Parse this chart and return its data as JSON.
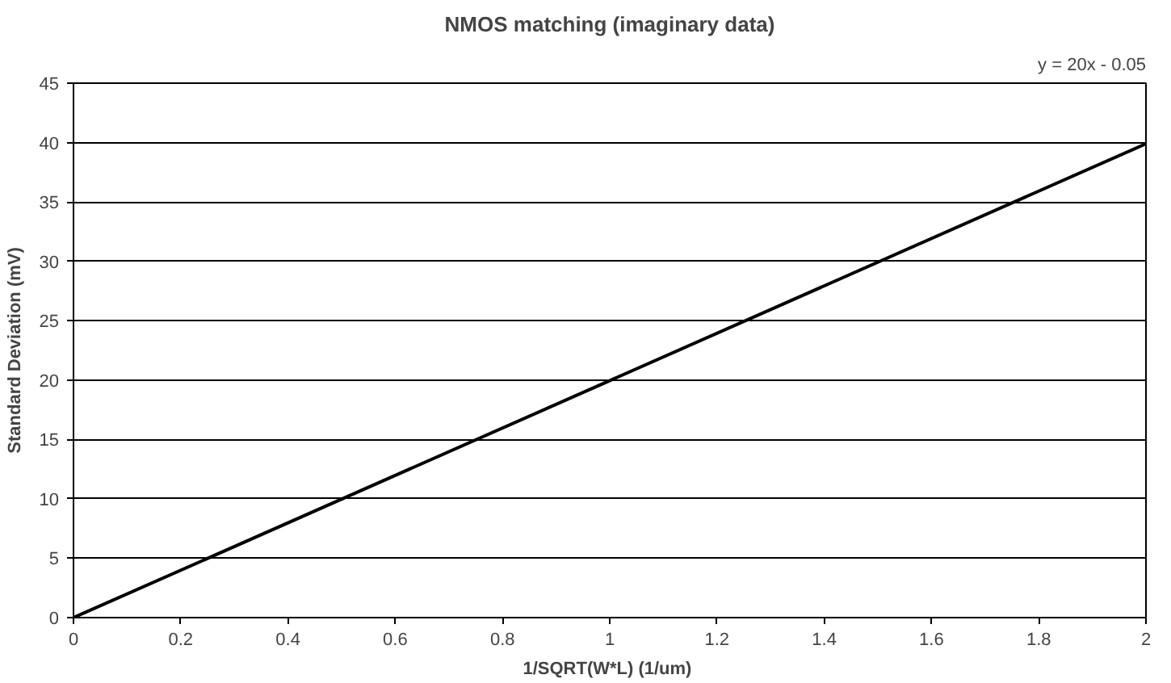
{
  "chart_data": {
    "type": "line",
    "title": "NMOS matching (imaginary data)",
    "xlabel": "1/SQRT(W*L)  (1/um)",
    "ylabel": "Standard Deviation (mV)",
    "annotations": [
      "y = 20x - 0.05"
    ],
    "x": [
      0,
      2
    ],
    "series": [
      {
        "color": "#000000",
        "values": [
          0,
          39.9
        ]
      }
    ],
    "xlim": [
      0,
      2
    ],
    "xticks": [
      0,
      0.2,
      0.4,
      0.6,
      0.8,
      1,
      1.2,
      1.4,
      1.6,
      1.8,
      2
    ],
    "ylim": [
      0,
      45
    ],
    "yticks": [
      0,
      5,
      10,
      15,
      20,
      25,
      30,
      35,
      40,
      45
    ],
    "grid": "y",
    "marker": "none",
    "line_style": "solid"
  }
}
